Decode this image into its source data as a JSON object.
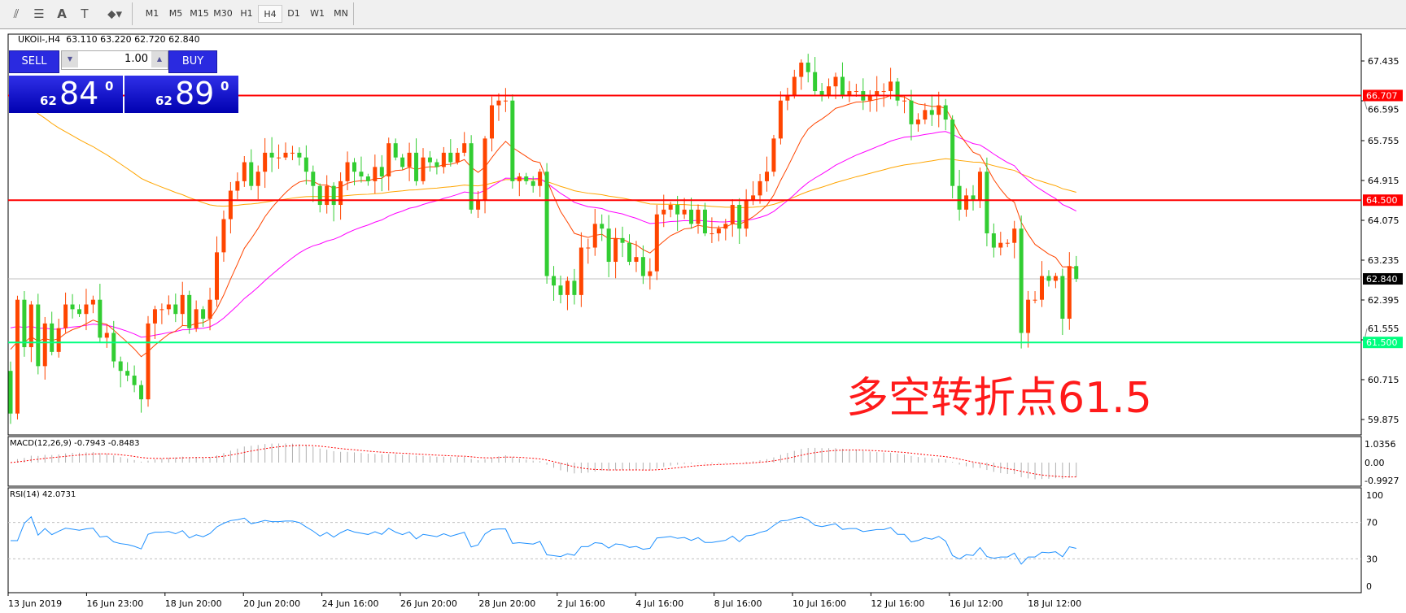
{
  "toolbar": {
    "icons": [
      "indicators-icon",
      "periods-icon",
      "text-icon",
      "text-label-icon",
      "arrows-icon"
    ],
    "timeframes": [
      "M1",
      "M5",
      "M15",
      "M30",
      "H1",
      "H4",
      "D1",
      "W1",
      "MN"
    ],
    "active_timeframe": "H4"
  },
  "chart_header": {
    "symbol": "UKOil-,H4",
    "ohlc": "63.110 63.220 62.720 62.840"
  },
  "trade_panel": {
    "sell_label": "SELL",
    "buy_label": "BUY",
    "lot": "1.00",
    "sell_small": "62",
    "sell_big": "84",
    "sell_pip": "0",
    "buy_small": "62",
    "buy_big": "89",
    "buy_pip": "0"
  },
  "annotation": "多空转折点61.5",
  "colors": {
    "bull": "#ff4500",
    "bear": "#32cd32",
    "level_red": "#ff0000",
    "level_green": "#00ff7f",
    "ma_fast": "#ff4500",
    "ma_mid": "#ff00ff",
    "ma_slow": "#ffa500"
  },
  "chart_data": {
    "type": "candlestick",
    "price_ticks": [
      "67.435",
      "66.595",
      "65.755",
      "64.915",
      "64.075",
      "63.235",
      "62.395",
      "61.555",
      "60.715",
      "59.875"
    ],
    "levels": [
      {
        "value": "66.707",
        "color": "#ff0000"
      },
      {
        "value": "64.500",
        "color": "#ff0000"
      },
      {
        "value": "61.500",
        "color": "#00ff7f"
      }
    ],
    "current_price": "62.840",
    "x_labels": [
      "13 Jun 2019",
      "16 Jun 23:00",
      "18 Jun 20:00",
      "20 Jun 20:00",
      "24 Jun 16:00",
      "26 Jun 20:00",
      "28 Jun 20:00",
      "2 Jul 16:00",
      "4 Jul 16:00",
      "8 Jul 16:00",
      "10 Jul 16:00",
      "12 Jul 16:00",
      "16 Jul 12:00",
      "18 Jul 12:00"
    ],
    "close": [
      60.0,
      62.4,
      61.4,
      62.3,
      61.0,
      61.9,
      61.3,
      61.8,
      62.3,
      62.2,
      62.1,
      62.3,
      62.4,
      61.6,
      61.7,
      61.1,
      60.9,
      60.8,
      60.6,
      60.3,
      61.9,
      62.2,
      62.2,
      62.3,
      62.1,
      62.5,
      61.8,
      62.2,
      62.0,
      62.4,
      63.4,
      64.1,
      64.7,
      64.9,
      65.3,
      64.8,
      65.1,
      65.5,
      65.4,
      65.4,
      65.5,
      65.5,
      65.4,
      65.1,
      64.8,
      64.4,
      64.8,
      64.4,
      64.9,
      65.3,
      65.1,
      65.0,
      64.9,
      65.2,
      65.0,
      65.7,
      65.4,
      65.2,
      65.5,
      64.9,
      65.4,
      65.3,
      65.2,
      65.5,
      65.3,
      65.5,
      65.7,
      64.3,
      64.5,
      65.8,
      66.5,
      66.6,
      66.6,
      64.9,
      65.0,
      64.9,
      64.8,
      65.1,
      62.9,
      62.7,
      62.5,
      62.8,
      62.5,
      63.5,
      63.5,
      64.0,
      63.9,
      63.2,
      63.7,
      63.6,
      63.2,
      63.3,
      62.9,
      63.0,
      64.2,
      64.3,
      64.4,
      64.2,
      64.3,
      64.0,
      64.3,
      63.8,
      63.8,
      63.9,
      64.0,
      64.4,
      63.9,
      64.5,
      64.6,
      64.9,
      65.1,
      65.8,
      66.6,
      66.7,
      67.1,
      67.4,
      67.2,
      66.8,
      66.7,
      66.9,
      67.1,
      66.7,
      66.8,
      66.8,
      66.6,
      66.7,
      66.8,
      66.8,
      67.0,
      66.6,
      66.6,
      66.1,
      66.2,
      66.4,
      66.3,
      66.5,
      66.2,
      64.8,
      64.3,
      64.6,
      64.5,
      65.1,
      63.8,
      63.5,
      63.6,
      63.6,
      63.9,
      61.7,
      62.4,
      62.4,
      62.9,
      62.8,
      62.9,
      62.0,
      63.11,
      62.84
    ],
    "macd": {
      "label": "MACD(12,26,9) -0.7943 -0.8483",
      "ticks": [
        "1.0356",
        "0.00",
        "-0.9927"
      ]
    },
    "rsi": {
      "label": "RSI(14) 42.0731",
      "ticks": [
        "100",
        "70",
        "30",
        "0"
      ],
      "levels": [
        70,
        30
      ]
    }
  }
}
